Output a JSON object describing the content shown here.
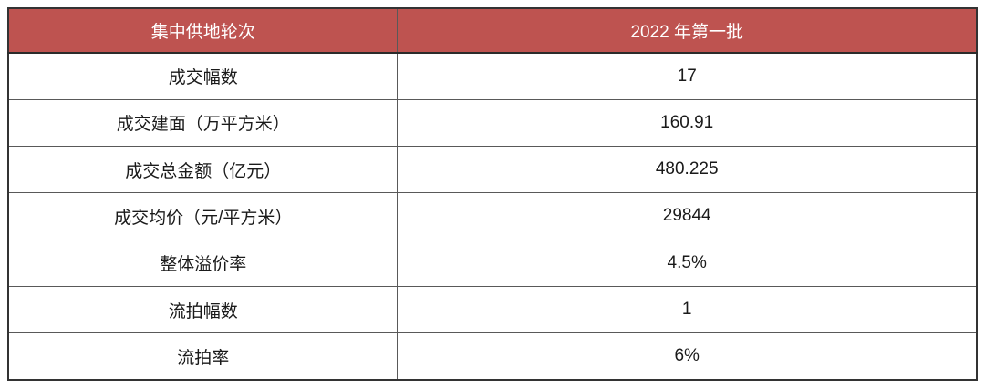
{
  "accent_color": "#BE5350",
  "header_text_color": "#FFFFFF",
  "body_text_color": "#1A1A1A",
  "grid_line_color": "#595959",
  "table": {
    "header": {
      "col1": "集中供地轮次",
      "col2": "2022 年第一批"
    },
    "rows": [
      {
        "label": "成交幅数",
        "value": "17"
      },
      {
        "label": "成交建面（万平方米）",
        "value": "160.91"
      },
      {
        "label": "成交总金额（亿元）",
        "value": "480.225"
      },
      {
        "label": "成交均价（元/平方米）",
        "value": "29844"
      },
      {
        "label": "整体溢价率",
        "value": "4.5%"
      },
      {
        "label": "流拍幅数",
        "value": "1"
      },
      {
        "label": "流拍率",
        "value": "6%"
      }
    ]
  },
  "chart_data": {
    "type": "table",
    "title": "",
    "columns": [
      "集中供地轮次",
      "2022 年第一批"
    ],
    "rows": [
      [
        "成交幅数",
        "17"
      ],
      [
        "成交建面（万平方米）",
        "160.91"
      ],
      [
        "成交总金额（亿元）",
        "480.225"
      ],
      [
        "成交均价（元/平方米）",
        "29844"
      ],
      [
        "整体溢价率",
        "4.5%"
      ],
      [
        "流拍幅数",
        "1"
      ],
      [
        "流拍率",
        "6%"
      ]
    ]
  }
}
